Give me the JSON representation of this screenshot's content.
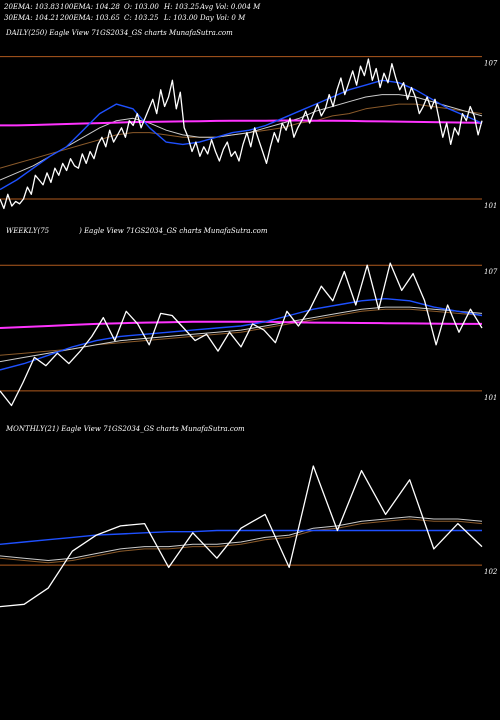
{
  "header": {
    "ema20": "20EMA: 103.83",
    "ema100": "100EMA: 104.28",
    "open": "O: 103.00",
    "high": "H: 103.25",
    "avg_vol": "Avg Vol: 0.004 M",
    "ema30": "30EMA: 104.21",
    "ema200": "200EMA: 103.65",
    "close": "C: 103.25",
    "low": "L: 103.00",
    "day_vol": "Day Vol: 0  M"
  },
  "colors": {
    "price": "#ffffff",
    "ema_fast": "#1e50ff",
    "ema_mid": "#cccccc",
    "ema_slow": "#8a5a2a",
    "ema_long": "#ff33ff",
    "gridline": "#b05a1e"
  },
  "chart_data": [
    {
      "type": "line",
      "title_left": "DAILY(250) Eagle  View  71GS2034_GS charts MunafaSutra.com",
      "ticks": [
        {
          "label": "107",
          "value": 107
        },
        {
          "label": "101",
          "value": 101
        }
      ],
      "ylim": [
        100.2,
        107.7
      ],
      "series": [
        {
          "role": "price",
          "values": [
            101.0,
            100.6,
            101.2,
            100.7,
            100.9,
            100.8,
            101.0,
            101.5,
            101.2,
            102.0,
            101.8,
            101.6,
            102.1,
            101.7,
            102.3,
            102.0,
            102.5,
            102.2,
            102.7,
            102.4,
            102.3,
            102.9,
            102.5,
            103.0,
            102.7,
            103.3,
            103.6,
            103.2,
            103.9,
            103.4,
            103.7,
            104.0,
            103.6,
            104.3,
            104.1,
            104.6,
            104.0,
            104.4,
            104.8,
            105.2,
            104.6,
            105.6,
            104.9,
            105.3,
            106.0,
            104.8,
            105.5,
            104.0,
            103.6,
            103.0,
            103.4,
            102.8,
            103.2,
            102.9,
            103.5,
            103.0,
            102.6,
            103.1,
            103.4,
            102.8,
            103.0,
            102.6,
            103.3,
            103.8,
            103.2,
            104.0,
            103.5,
            103.0,
            102.5,
            103.2,
            103.8,
            103.4,
            104.2,
            103.9,
            104.4,
            103.6,
            104.0,
            104.3,
            104.7,
            104.2,
            104.6,
            105.0,
            104.5,
            104.8,
            105.4,
            104.9,
            105.6,
            106.1,
            105.4,
            105.9,
            106.4,
            105.8,
            106.6,
            106.2,
            106.9,
            106.0,
            106.5,
            105.7,
            106.3,
            105.9,
            106.7,
            106.1,
            105.6,
            105.9,
            105.2,
            105.7,
            105.3,
            104.6,
            104.9,
            105.3,
            104.8,
            105.2,
            104.4,
            103.6,
            104.2,
            103.3,
            104.0,
            103.7,
            104.6,
            104.3,
            104.9,
            104.5,
            103.7,
            104.3
          ]
        },
        {
          "role": "ema_fast",
          "values": [
            101.4,
            101.8,
            102.3,
            102.8,
            103.2,
            103.9,
            104.6,
            105.0,
            104.8,
            104.0,
            103.4,
            103.3,
            103.4,
            103.6,
            103.8,
            103.9,
            104.1,
            104.4,
            104.7,
            105.0,
            105.3,
            105.6,
            105.8,
            106.0,
            105.9,
            105.6,
            105.2,
            104.8,
            104.5,
            104.2
          ]
        },
        {
          "role": "ema_mid",
          "values": [
            101.8,
            102.1,
            102.4,
            102.8,
            103.2,
            103.6,
            104.0,
            104.3,
            104.4,
            104.2,
            103.9,
            103.7,
            103.6,
            103.6,
            103.7,
            103.8,
            104.0,
            104.2,
            104.4,
            104.7,
            104.9,
            105.1,
            105.3,
            105.4,
            105.4,
            105.3,
            105.1,
            104.9,
            104.7,
            104.5
          ]
        },
        {
          "role": "ema_slow",
          "values": [
            102.3,
            102.5,
            102.7,
            102.9,
            103.1,
            103.3,
            103.5,
            103.7,
            103.8,
            103.8,
            103.7,
            103.6,
            103.6,
            103.6,
            103.7,
            103.8,
            103.9,
            104.0,
            104.2,
            104.3,
            104.5,
            104.6,
            104.8,
            104.9,
            105.0,
            105.0,
            104.9,
            104.8,
            104.7,
            104.6
          ]
        },
        {
          "role": "ema_long",
          "values": [
            104.1,
            104.1,
            104.12,
            104.14,
            104.16,
            104.18,
            104.2,
            104.22,
            104.24,
            104.25,
            104.26,
            104.27,
            104.28,
            104.29,
            104.3,
            104.3,
            104.3,
            104.31,
            104.31,
            104.3,
            104.3,
            104.29,
            104.28,
            104.27,
            104.26,
            104.25,
            104.24,
            104.23,
            104.22,
            104.21
          ]
        }
      ]
    },
    {
      "type": "line",
      "title_left": "WEEKLY(75",
      "title_right": ") Eagle  View  71GS2034_GS charts MunafaSutra.com",
      "ticks": [
        {
          "label": "107",
          "value": 107
        },
        {
          "label": "101",
          "value": 101
        }
      ],
      "ylim": [
        99.8,
        108.3
      ],
      "series": [
        {
          "role": "price",
          "values": [
            101.0,
            100.3,
            101.4,
            102.6,
            102.2,
            102.8,
            102.3,
            102.9,
            103.6,
            104.5,
            103.4,
            104.8,
            104.2,
            103.2,
            104.7,
            104.6,
            104.0,
            103.4,
            103.7,
            102.9,
            103.8,
            103.1,
            104.2,
            103.9,
            103.3,
            104.8,
            104.1,
            104.9,
            106.0,
            105.3,
            106.7,
            105.1,
            107.0,
            104.9,
            107.1,
            105.8,
            106.6,
            105.3,
            103.2,
            105.1,
            103.8,
            104.9,
            104.0
          ]
        },
        {
          "role": "ema_fast",
          "values": [
            102.0,
            102.3,
            102.7,
            103.1,
            103.4,
            103.6,
            103.7,
            103.8,
            103.9,
            104.0,
            104.1,
            104.3,
            104.6,
            104.9,
            105.1,
            105.3,
            105.4,
            105.3,
            105.0,
            104.8,
            104.6
          ]
        },
        {
          "role": "ema_mid",
          "values": [
            102.4,
            102.6,
            102.8,
            103.0,
            103.2,
            103.4,
            103.5,
            103.6,
            103.7,
            103.8,
            103.9,
            104.1,
            104.3,
            104.5,
            104.7,
            104.9,
            105.0,
            105.0,
            104.9,
            104.8,
            104.7
          ]
        },
        {
          "role": "ema_slow",
          "values": [
            102.7,
            102.8,
            102.9,
            103.0,
            103.2,
            103.3,
            103.4,
            103.5,
            103.6,
            103.7,
            103.8,
            104.0,
            104.2,
            104.4,
            104.6,
            104.8,
            104.9,
            104.9,
            104.8,
            104.7,
            104.6
          ]
        },
        {
          "role": "ema_long",
          "values": [
            104.0,
            104.05,
            104.1,
            104.15,
            104.2,
            104.23,
            104.26,
            104.28,
            104.3,
            104.3,
            104.3,
            104.3,
            104.28,
            104.26,
            104.25,
            104.24,
            104.23,
            104.22,
            104.21,
            104.2,
            104.2
          ]
        }
      ]
    },
    {
      "type": "line",
      "title_left": "MONTHLY(21) Eagle  View  71GS2034_GS charts MunafaSutra.com",
      "ticks": [
        {
          "label": "102",
          "value": 102
        }
      ],
      "ylim": [
        99.4,
        107.6
      ],
      "series": [
        {
          "role": "price",
          "values": [
            100.2,
            100.3,
            101.0,
            102.6,
            103.3,
            103.7,
            103.8,
            101.9,
            103.4,
            102.3,
            103.6,
            104.2,
            101.9,
            106.3,
            103.5,
            106.1,
            104.2,
            105.7,
            102.7,
            103.8,
            102.8
          ]
        },
        {
          "role": "ema_fast",
          "values": [
            102.9,
            103.0,
            103.1,
            103.2,
            103.3,
            103.35,
            103.4,
            103.45,
            103.45,
            103.5,
            103.5,
            103.5,
            103.5,
            103.5,
            103.5,
            103.5,
            103.5,
            103.5,
            103.5,
            103.5,
            103.5
          ]
        },
        {
          "role": "ema_mid",
          "values": [
            102.4,
            102.3,
            102.2,
            102.3,
            102.5,
            102.7,
            102.8,
            102.8,
            102.9,
            102.9,
            103.0,
            103.2,
            103.3,
            103.6,
            103.7,
            103.9,
            104.0,
            104.1,
            104.0,
            104.0,
            103.9
          ]
        },
        {
          "role": "ema_slow",
          "values": [
            102.3,
            102.2,
            102.1,
            102.2,
            102.4,
            102.6,
            102.7,
            102.7,
            102.8,
            102.8,
            102.9,
            103.1,
            103.2,
            103.5,
            103.6,
            103.8,
            103.9,
            104.0,
            103.9,
            103.9,
            103.8
          ]
        }
      ]
    }
  ]
}
